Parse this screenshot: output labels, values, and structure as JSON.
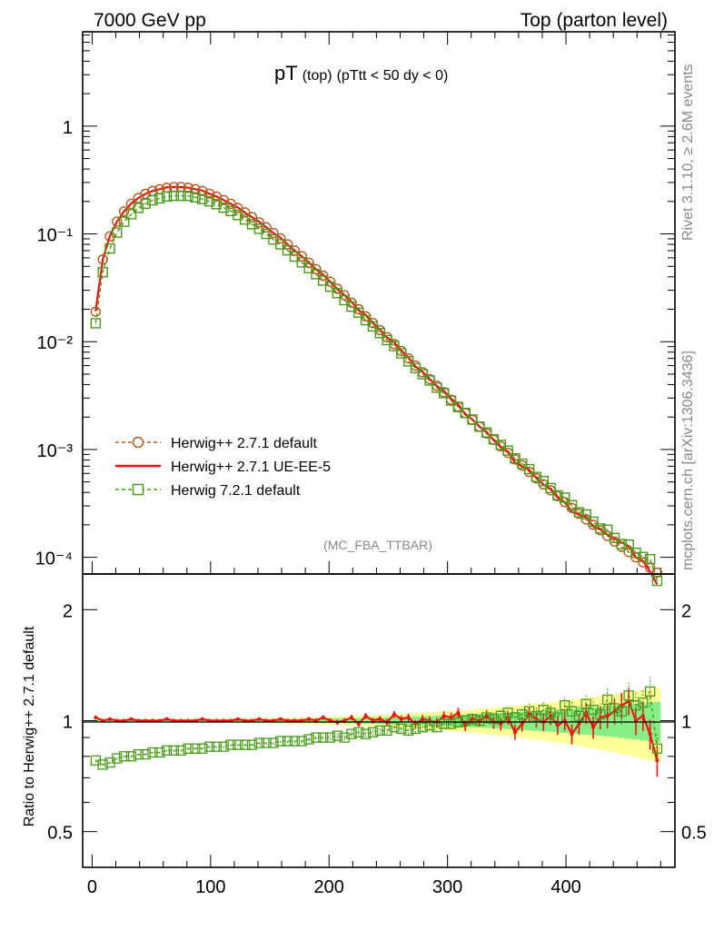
{
  "header": {
    "left": "7000 GeV pp",
    "right": "Top (parton level)"
  },
  "side": {
    "rivet": "Rivet 3.1.10, ≥ 2.6M events",
    "mcplots": "mcplots.cern.ch [arXiv:1306.3436]"
  },
  "chart_data": {
    "type": "line",
    "title_main": "pT",
    "title_sub1": "(top)",
    "title_sub2": "(pTtt < 50 dy < 0)",
    "analysis": "(MC_FBA_TTBAR)",
    "ratio_ylabel": "Ratio to Herwig++ 2.7.1 default",
    "x_tick_labels": [
      "0",
      "100",
      "200",
      "300",
      "400"
    ],
    "y_tick_labels": [
      "10⁻⁴",
      "10⁻³",
      "10⁻²",
      "10⁻¹",
      "1"
    ],
    "ratio_tick_labels": [
      "0.5",
      "1",
      "2"
    ],
    "xlim": [
      -8,
      492
    ],
    "ylim": [
      7e-05,
      7.5
    ],
    "yscale": "log",
    "ratio_ylim": [
      0.4,
      2.5
    ],
    "ratio_yscale": "log",
    "legend_position": "bottom-left",
    "colors": {
      "herwigpp_default": "#b35a1f",
      "herwigpp_ueee5": "#ee1111",
      "herwig7_default": "#4a9a1a",
      "band_yellow": "#ffff99",
      "band_green": "#88ee88"
    },
    "series": [
      {
        "name": "Herwig++ 2.7.1 default",
        "style": "dashed-circle",
        "x": [
          3,
          9,
          15,
          21,
          27,
          33,
          39,
          45,
          51,
          57,
          63,
          69,
          75,
          81,
          87,
          93,
          99,
          105,
          111,
          117,
          123,
          129,
          135,
          141,
          147,
          153,
          159,
          165,
          171,
          177,
          183,
          189,
          195,
          201,
          207,
          213,
          219,
          225,
          231,
          237,
          243,
          249,
          255,
          261,
          267,
          273,
          279,
          285,
          291,
          297,
          303,
          309,
          315,
          321,
          327,
          333,
          339,
          345,
          351,
          357,
          363,
          369,
          375,
          381,
          387,
          393,
          399,
          405,
          411,
          417,
          423,
          429,
          435,
          441,
          447,
          453,
          459,
          465,
          471,
          477
        ],
        "y": [
          0.019,
          0.058,
          0.095,
          0.13,
          0.162,
          0.19,
          0.215,
          0.235,
          0.25,
          0.26,
          0.268,
          0.272,
          0.272,
          0.268,
          0.26,
          0.25,
          0.236,
          0.222,
          0.206,
          0.19,
          0.174,
          0.158,
          0.143,
          0.128,
          0.115,
          0.102,
          0.091,
          0.08,
          0.07,
          0.062,
          0.054,
          0.047,
          0.041,
          0.036,
          0.031,
          0.027,
          0.023,
          0.02,
          0.0172,
          0.0149,
          0.0128,
          0.011,
          0.0095,
          0.0082,
          0.007,
          0.006,
          0.0052,
          0.0045,
          0.0039,
          0.0034,
          0.0029,
          0.0025,
          0.00218,
          0.00188,
          0.00163,
          0.00141,
          0.00123,
          0.00107,
          0.00093,
          0.00081,
          0.00071,
          0.00062,
          0.00054,
          0.000475,
          0.000418,
          0.000368,
          0.000325,
          0.000287,
          0.000254,
          0.000225,
          0.0002,
          0.000178,
          0.000158,
          0.00014,
          0.000125,
          0.000112,
          0.0001,
          9e-05,
          8e-05,
          7.2e-05
        ]
      },
      {
        "name": "Herwig++ 2.7.1 UE-EE-5",
        "style": "solid",
        "ratio": [
          1.02,
          1.0,
          1.01,
          1.0,
          1.0,
          1.01,
          1.0,
          1.0,
          1.0,
          1.0,
          1.01,
          1.0,
          1.0,
          1.0,
          1.0,
          1.01,
          1.0,
          1.0,
          1.0,
          1.0,
          1.01,
          1.0,
          1.0,
          1.01,
          1.0,
          1.0,
          1.01,
          1.0,
          1.0,
          1.0,
          1.01,
          1.0,
          1.02,
          1.0,
          0.99,
          1.0,
          1.02,
          0.98,
          1.03,
          1.0,
          1.01,
          0.99,
          1.04,
          1.01,
          1.02,
          0.98,
          1.01,
          1.0,
          0.99,
          1.03,
          1.02,
          1.05,
          0.97,
          1.01,
          1.0,
          1.03,
          0.99,
          0.98,
          1.02,
          0.93,
          0.98,
          1.04,
          1.01,
          0.99,
          1.03,
          0.97,
          1.0,
          0.92,
          0.98,
          1.05,
          0.96,
          1.02,
          1.03,
          1.06,
          1.1,
          1.13,
          1.0,
          1.03,
          0.92,
          0.78
        ]
      },
      {
        "name": "Herwig 7.2.1 default",
        "style": "dashed-square",
        "ratio": [
          0.78,
          0.76,
          0.77,
          0.79,
          0.8,
          0.8,
          0.81,
          0.81,
          0.82,
          0.82,
          0.83,
          0.83,
          0.83,
          0.84,
          0.84,
          0.84,
          0.85,
          0.85,
          0.85,
          0.86,
          0.86,
          0.86,
          0.86,
          0.87,
          0.87,
          0.87,
          0.88,
          0.88,
          0.88,
          0.88,
          0.89,
          0.9,
          0.9,
          0.9,
          0.91,
          0.9,
          0.92,
          0.93,
          0.92,
          0.93,
          0.94,
          0.94,
          0.96,
          0.95,
          0.94,
          0.95,
          0.96,
          0.97,
          0.96,
          0.98,
          0.98,
          0.99,
          1.0,
          1.01,
          1.0,
          1.02,
          1.01,
          1.03,
          1.05,
          1.02,
          1.04,
          1.06,
          1.03,
          1.07,
          1.05,
          1.02,
          1.1,
          1.06,
          1.03,
          1.11,
          1.07,
          1.04,
          1.14,
          1.08,
          1.06,
          1.17,
          1.1,
          1.12,
          1.2,
          0.84
        ]
      }
    ]
  }
}
